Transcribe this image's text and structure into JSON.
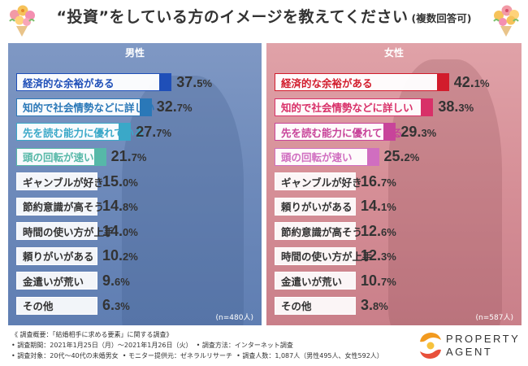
{
  "title": {
    "main": "“投資”をしている方のイメージを教えてください",
    "note": "(複数回答可)"
  },
  "colors": {
    "male_bg": "#6f8bbb",
    "female_bg": "#d68f97",
    "text_dark": "#333333"
  },
  "chart_data": [
    {
      "type": "bar",
      "title": "男性",
      "sample": "(n=480人)",
      "unit": "%",
      "categories": [
        "経済的な余裕がある",
        "知的で社会情勢などに詳しい",
        "先を読む能力に優れている",
        "頭の回転が速い",
        "ギャンブルが好き",
        "節約意識が高そう",
        "時間の使い方が上手",
        "頼りがいがある",
        "金遣いが荒い",
        "その他"
      ],
      "values": [
        37.5,
        32.7,
        27.7,
        21.7,
        15.0,
        14.8,
        14.0,
        10.2,
        9.6,
        6.3
      ],
      "value_labels": [
        "37.5",
        "32.7",
        "27.7",
        "21.7",
        "15.0",
        "14.8",
        "14.0",
        "10.2",
        "9.6",
        "6.3"
      ],
      "highlight_colors": [
        "#1f4fb8",
        "#2a78b8",
        "#3aa8c8",
        "#56b8a8"
      ]
    },
    {
      "type": "bar",
      "title": "女性",
      "sample": "(n=587人)",
      "unit": "%",
      "categories": [
        "経済的な余裕がある",
        "知的で社会情勢などに詳しい",
        "先を読む能力に優れている",
        "頭の回転が速い",
        "ギャンブルが好き",
        "頼りがいがある",
        "節約意識が高そう",
        "時間の使い方が上手",
        "金遣いが荒い",
        "その他"
      ],
      "values": [
        42.1,
        38.3,
        29.3,
        25.2,
        16.7,
        14.1,
        12.6,
        12.3,
        10.7,
        3.8
      ],
      "value_labels": [
        "42.1",
        "38.3",
        "29.3",
        "25.2",
        "16.7",
        "14.1",
        "12.6",
        "12.3",
        "10.7",
        "3.8"
      ],
      "highlight_colors": [
        "#d21c2c",
        "#d83068",
        "#c8449a",
        "#d06ec0"
      ]
    }
  ],
  "survey": {
    "line1": "《 調査概要：「結婚相手に求める要素」に関する調査》",
    "line2a": "• 調査期間：2021年1月25日（月）〜2021年1月26日（火）",
    "line2b": "• 調査方法：インターネット調査",
    "line3a": "• 調査対象：20代〜40代の未婚男女",
    "line3b": "• モニター提供元：ゼネラルリサーチ",
    "line3c": "• 調査人数：1,087人（男性495人、女性592人）"
  },
  "logo": {
    "line1": "PROPERTY",
    "line2": "AGENT"
  }
}
